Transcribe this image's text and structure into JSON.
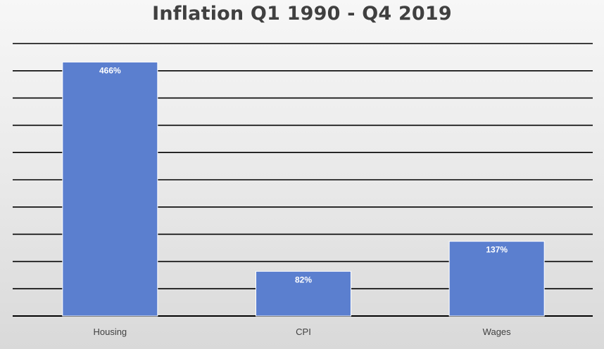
{
  "chart_data": {
    "type": "bar",
    "title": "Inflation Q1 1990 - Q4 2019",
    "categories": [
      "Housing",
      "CPI",
      "Wages"
    ],
    "values": [
      466,
      82,
      137
    ],
    "data_labels": [
      "466%",
      "82%",
      "137%"
    ],
    "ylim": [
      0,
      500
    ],
    "ytick_step": 50,
    "grid": true,
    "legend": "none",
    "bar_color": "#5b7fcf"
  }
}
